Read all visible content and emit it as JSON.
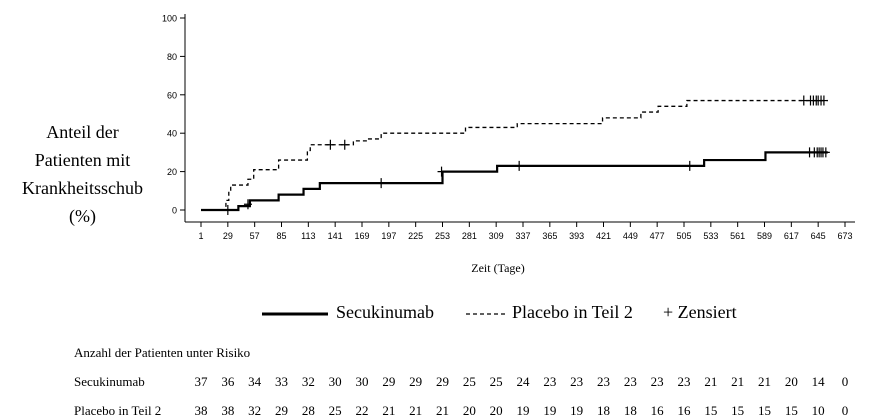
{
  "chart_data": {
    "type": "line",
    "xlabel": "Zeit (Tage)",
    "ylabel_lines": [
      "Anteil der",
      "Patienten mit",
      "Krankheitsschub",
      "(%)"
    ],
    "x_ticks": [
      1,
      29,
      57,
      85,
      113,
      141,
      169,
      197,
      225,
      253,
      281,
      309,
      337,
      365,
      393,
      421,
      449,
      477,
      505,
      533,
      561,
      589,
      617,
      645,
      673
    ],
    "y_ticks": [
      0,
      20,
      40,
      60,
      80,
      100
    ],
    "xlim": [
      1,
      673
    ],
    "ylim": [
      0,
      100
    ],
    "series": [
      {
        "name": "Secukinumab",
        "style": "solid",
        "color": "#000000",
        "steps": [
          [
            1,
            0
          ],
          [
            40,
            2
          ],
          [
            52,
            5
          ],
          [
            82,
            8
          ],
          [
            108,
            11
          ],
          [
            125,
            14
          ],
          [
            253,
            20
          ],
          [
            310,
            23
          ],
          [
            526,
            26
          ],
          [
            590,
            30
          ],
          [
            655,
            30
          ]
        ],
        "censored": [
          [
            29,
            0
          ],
          [
            50,
            3
          ],
          [
            189,
            14
          ],
          [
            252,
            20
          ],
          [
            333,
            23
          ],
          [
            511,
            23
          ],
          [
            636,
            30
          ],
          [
            641,
            30
          ],
          [
            644,
            30
          ],
          [
            646,
            30
          ],
          [
            648,
            30
          ],
          [
            650,
            30
          ],
          [
            653,
            30
          ]
        ]
      },
      {
        "name": "Placebo in Teil 2",
        "style": "dashed",
        "color": "#000000",
        "steps": [
          [
            1,
            0
          ],
          [
            27,
            5
          ],
          [
            30,
            10
          ],
          [
            32,
            13
          ],
          [
            50,
            16
          ],
          [
            56,
            21
          ],
          [
            82,
            26
          ],
          [
            112,
            31
          ],
          [
            115,
            34
          ],
          [
            160,
            36
          ],
          [
            175,
            37
          ],
          [
            189,
            40
          ],
          [
            277,
            43
          ],
          [
            331,
            45
          ],
          [
            420,
            48
          ],
          [
            460,
            51
          ],
          [
            478,
            54
          ],
          [
            508,
            57
          ],
          [
            655,
            57
          ]
        ],
        "censored": [
          [
            136,
            34
          ],
          [
            151,
            34
          ],
          [
            630,
            57
          ],
          [
            637,
            57
          ],
          [
            640,
            57
          ],
          [
            643,
            57
          ],
          [
            645,
            57
          ],
          [
            648,
            57
          ],
          [
            651,
            57
          ]
        ]
      }
    ],
    "legend": {
      "secukinumab": "Secukinumab",
      "placebo": "Placebo in Teil 2",
      "censored": "+ Zensiert",
      "placement": "bottom"
    },
    "risk_table": {
      "title": "Anzahl der Patienten unter Risiko",
      "rows": [
        {
          "label": "Secukinumab",
          "values": [
            "37",
            "36",
            "34",
            "33",
            "32",
            "30",
            "30",
            "29",
            "29",
            "29",
            "25",
            "25",
            "24",
            "23",
            "23",
            "23",
            "23",
            "23",
            "23",
            "21",
            "21",
            "21",
            "20",
            "14",
            "0"
          ]
        },
        {
          "label": "Placebo in Teil 2",
          "values": [
            "38",
            "38",
            "32",
            "29",
            "28",
            "25",
            "22",
            "21",
            "21",
            "21",
            "20",
            "20",
            "19",
            "19",
            "19",
            "18",
            "18",
            "16",
            "16",
            "15",
            "15",
            "15",
            "15",
            "10",
            "0"
          ]
        }
      ]
    }
  }
}
